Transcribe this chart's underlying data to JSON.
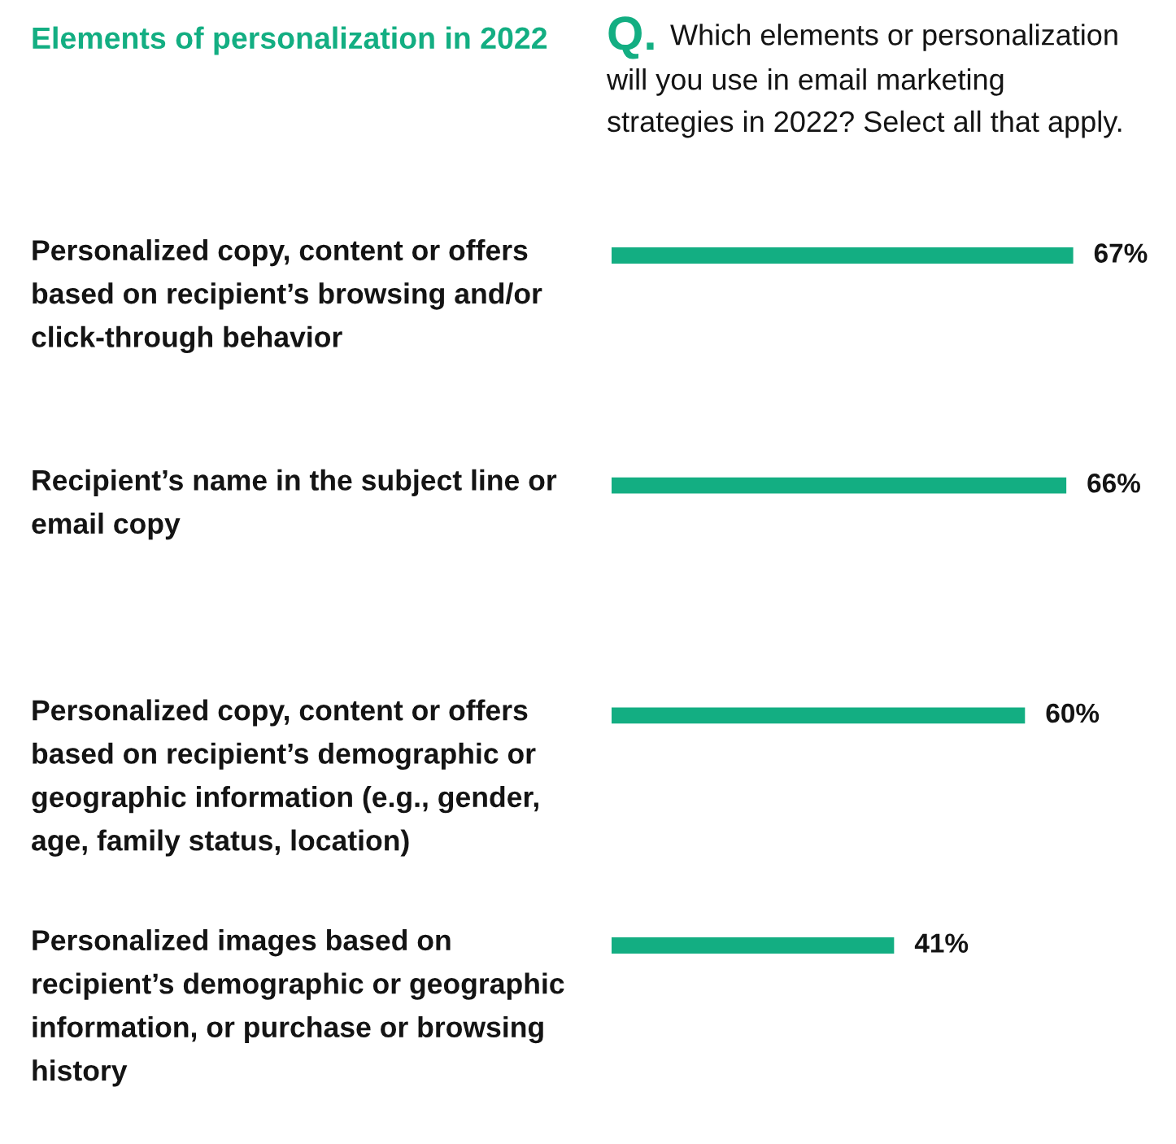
{
  "chart_data": {
    "type": "bar",
    "orientation": "horizontal",
    "title": "Elements of personalization in 2022",
    "subtitle": "Q. Which elements or personalization\nwill you use in email marketing\nstrategies in 2022? Select all that apply.",
    "categories": [
      "Personalized copy, content or offers\nbased on recipient’s browsing and/or\nclick-through behavior",
      "Recipient’s name in the subject line or\nemail copy",
      "Personalized copy, content or offers\nbased on recipient’s demographic or\ngeographic information (e.g., gender,\nage, family status, location)",
      "Personalized images based on\nrecipient’s demographic or geographic\ninformation, or purchase or browsing\nhistory"
    ],
    "values": [
      67,
      66,
      60,
      41
    ],
    "value_labels": [
      "67%",
      "66%",
      "60%",
      "41%"
    ],
    "color": "#13ae82",
    "tick_labels": "y",
    "grid": false,
    "legend": false
  }
}
